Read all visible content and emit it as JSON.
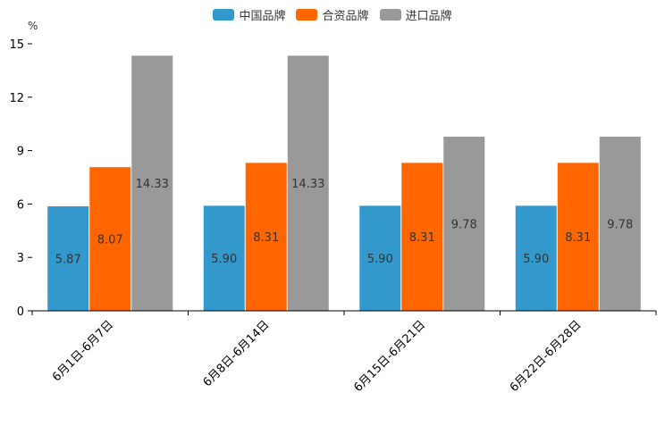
{
  "chart_data": {
    "type": "bar",
    "unit": "%",
    "categories": [
      "6月1日-6月7日",
      "6月8日-6月14日",
      "6月15日-6月21日",
      "6月22日-6月28日"
    ],
    "series": [
      {
        "name": "中国品牌",
        "color": "#3399cc",
        "values": [
          5.87,
          5.9,
          5.9,
          5.9
        ],
        "labels": [
          "5.87",
          "5.90",
          "5.90",
          "5.90"
        ]
      },
      {
        "name": "合资品牌",
        "color": "#ff6600",
        "values": [
          8.07,
          8.31,
          8.31,
          8.31
        ],
        "labels": [
          "8.07",
          "8.31",
          "8.31",
          "8.31"
        ]
      },
      {
        "name": "进口品牌",
        "color": "#999999",
        "values": [
          14.33,
          14.33,
          9.78,
          9.78
        ],
        "labels": [
          "14.33",
          "14.33",
          "9.78",
          "9.78"
        ]
      }
    ],
    "ylim": [
      0,
      15
    ],
    "yticks": [
      "0",
      "3",
      "6",
      "9",
      "12",
      "15"
    ],
    "legend_position": "top-center",
    "grid": false
  }
}
